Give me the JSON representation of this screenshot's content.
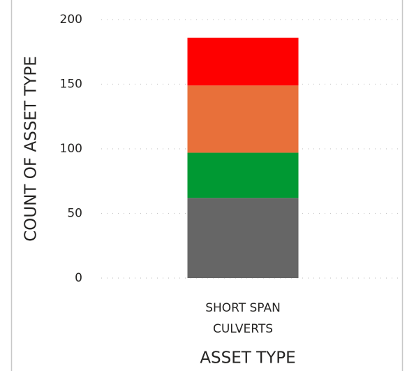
{
  "chart_data": {
    "type": "stacked_bar",
    "x_label": "ASSET TYPE",
    "y_label": "COUNT OF ASSET TYPE",
    "categories": [
      "SHORT SPAN CULVERTS"
    ],
    "series": [
      {
        "color": "#666666",
        "values": [
          62
        ]
      },
      {
        "color": "#009933",
        "values": [
          35
        ]
      },
      {
        "color": "#e8703a",
        "values": [
          52
        ]
      },
      {
        "color": "#fe0000",
        "values": [
          37
        ]
      }
    ],
    "ylim": [
      0,
      200
    ],
    "yticks": [
      0,
      50,
      100,
      150,
      200
    ],
    "grid": true
  }
}
